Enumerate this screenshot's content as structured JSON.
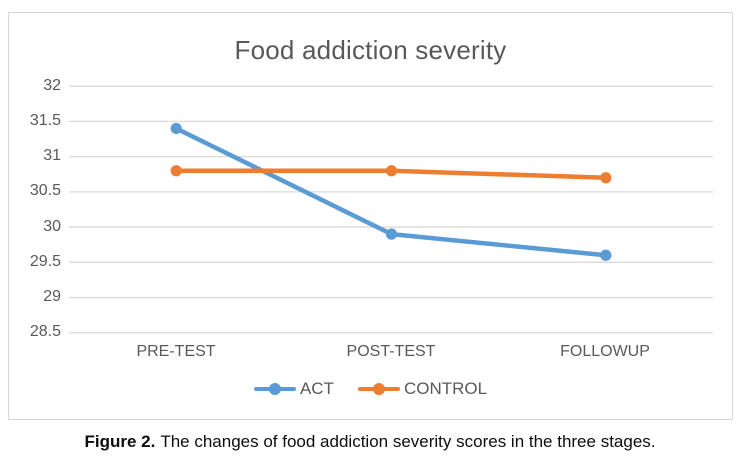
{
  "chart_data": {
    "type": "line",
    "title": "Food addiction severity",
    "categories": [
      "PRE-TEST",
      "POST-TEST",
      "FOLLOWUP"
    ],
    "series": [
      {
        "name": "ACT",
        "color": "#5B9BD5",
        "values": [
          31.4,
          29.9,
          29.6
        ]
      },
      {
        "name": "CONTROL",
        "color": "#ED7D31",
        "values": [
          30.8,
          30.8,
          30.7
        ]
      }
    ],
    "ylim": [
      28.5,
      32
    ],
    "ytick_step": 0.5,
    "yticks": [
      "32",
      "31.5",
      "31",
      "30.5",
      "30",
      "29.5",
      "29",
      "28.5"
    ],
    "xlabel": "",
    "ylabel": "",
    "grid": true,
    "legend_position": "bottom"
  },
  "caption": {
    "label": "Figure 2.",
    "text": "The changes of food addiction severity scores in the three stages."
  },
  "colors": {
    "act": "#5B9BD5",
    "control": "#ED7D31",
    "gridline": "#D9D9D9",
    "chart_border": "#D5D5D5",
    "chart_text": "#595959",
    "caption_text": "#0d0d0d"
  }
}
